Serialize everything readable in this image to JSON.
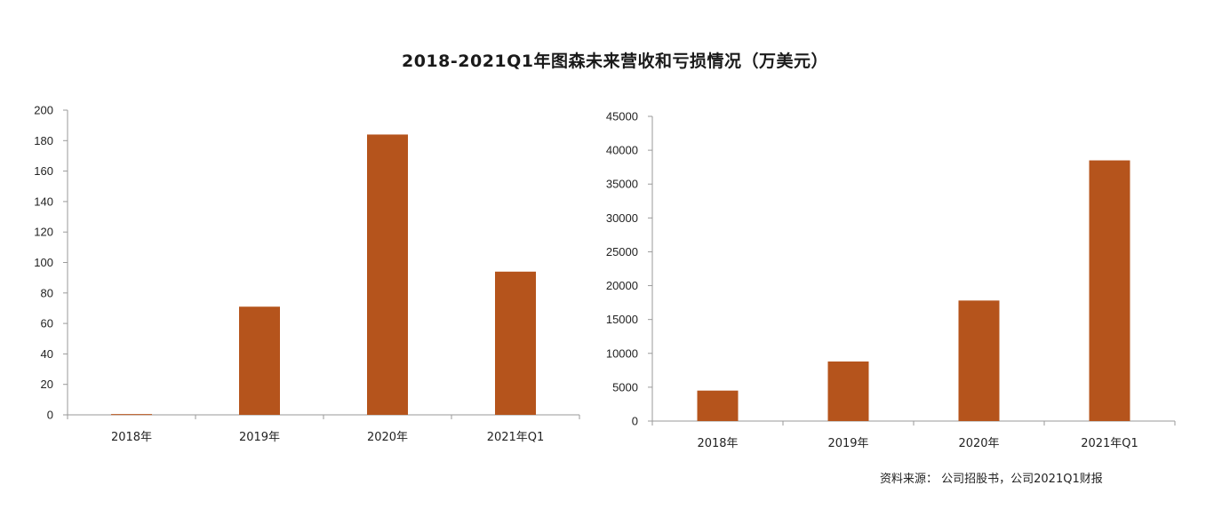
{
  "title": "2018-2021Q1年图森未来营收和亏损情况（万美元）",
  "source": "资料来源：  公司招股书，公司2021Q1财报",
  "bar_color": "#B5541C",
  "chart_data": [
    {
      "type": "bar",
      "title": "",
      "categories": [
        "2018年",
        "2019年",
        "2020年",
        "2021年Q1"
      ],
      "values": [
        0.5,
        71,
        184,
        94
      ],
      "ylim": [
        0,
        200
      ],
      "yticks": [
        0,
        20,
        40,
        60,
        80,
        100,
        120,
        140,
        160,
        180,
        200
      ],
      "xlabel": "",
      "ylabel": "",
      "grid": false,
      "legend": "none"
    },
    {
      "type": "bar",
      "title": "",
      "categories": [
        "2018年",
        "2019年",
        "2020年",
        "2021年Q1"
      ],
      "values": [
        4500,
        8800,
        17800,
        38500
      ],
      "ylim": [
        0,
        45000
      ],
      "yticks": [
        0,
        5000,
        10000,
        15000,
        20000,
        25000,
        30000,
        35000,
        40000,
        45000
      ],
      "xlabel": "",
      "ylabel": "",
      "grid": false,
      "legend": "none"
    }
  ]
}
